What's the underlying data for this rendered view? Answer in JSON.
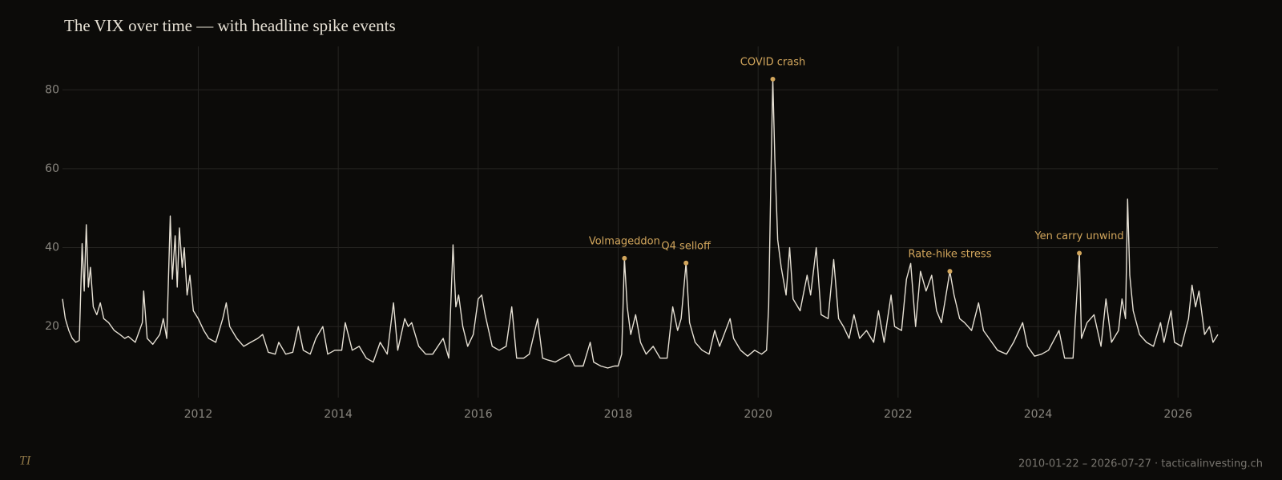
{
  "chart_data": {
    "type": "line",
    "title": "The VIX over time — with headline spike events",
    "logo": "TI",
    "footer": "2010-01-22 – 2026-07-27   ·   tacticalinvesting.ch",
    "color": "#e6e0d4",
    "annotation_color": "#d2a65c",
    "grid": true,
    "xlim": [
      2010.06,
      2026.57
    ],
    "xticks": [
      2012,
      2014,
      2016,
      2018,
      2020,
      2022,
      2024,
      2026
    ],
    "ylim": [
      2,
      91
    ],
    "yticks": [
      20,
      40,
      60,
      80
    ],
    "x": [
      2010.06,
      2010.1,
      2010.15,
      2010.2,
      2010.25,
      2010.3,
      2010.34,
      2010.37,
      2010.4,
      2010.43,
      2010.46,
      2010.5,
      2010.55,
      2010.6,
      2010.65,
      2010.72,
      2010.8,
      2010.88,
      2010.95,
      2011.0,
      2011.1,
      2011.2,
      2011.22,
      2011.27,
      2011.35,
      2011.45,
      2011.5,
      2011.55,
      2011.6,
      2011.63,
      2011.67,
      2011.7,
      2011.73,
      2011.77,
      2011.8,
      2011.84,
      2011.88,
      2011.93,
      2012.0,
      2012.08,
      2012.15,
      2012.25,
      2012.35,
      2012.4,
      2012.45,
      2012.55,
      2012.65,
      2012.75,
      2012.85,
      2012.92,
      2013.0,
      2013.1,
      2013.15,
      2013.25,
      2013.35,
      2013.43,
      2013.5,
      2013.6,
      2013.68,
      2013.78,
      2013.85,
      2013.95,
      2014.05,
      2014.1,
      2014.2,
      2014.3,
      2014.4,
      2014.5,
      2014.6,
      2014.7,
      2014.79,
      2014.85,
      2014.95,
      2015.0,
      2015.05,
      2015.15,
      2015.25,
      2015.35,
      2015.5,
      2015.58,
      2015.64,
      2015.68,
      2015.72,
      2015.78,
      2015.85,
      2015.93,
      2016.0,
      2016.05,
      2016.1,
      2016.2,
      2016.3,
      2016.4,
      2016.48,
      2016.55,
      2016.65,
      2016.73,
      2016.85,
      2016.92,
      2017.0,
      2017.1,
      2017.2,
      2017.3,
      2017.38,
      2017.5,
      2017.6,
      2017.65,
      2017.75,
      2017.85,
      2017.95,
      2018.0,
      2018.05,
      2018.09,
      2018.13,
      2018.18,
      2018.25,
      2018.32,
      2018.4,
      2018.5,
      2018.6,
      2018.7,
      2018.78,
      2018.85,
      2018.9,
      2018.97,
      2019.02,
      2019.1,
      2019.2,
      2019.3,
      2019.38,
      2019.45,
      2019.6,
      2019.65,
      2019.75,
      2019.85,
      2019.95,
      2020.05,
      2020.12,
      2020.15,
      2020.18,
      2020.21,
      2020.24,
      2020.28,
      2020.33,
      2020.4,
      2020.45,
      2020.5,
      2020.6,
      2020.7,
      2020.75,
      2020.83,
      2020.9,
      2021.0,
      2021.08,
      2021.15,
      2021.22,
      2021.3,
      2021.37,
      2021.45,
      2021.55,
      2021.65,
      2021.72,
      2021.8,
      2021.9,
      2021.95,
      2022.05,
      2022.12,
      2022.18,
      2022.25,
      2022.32,
      2022.4,
      2022.48,
      2022.55,
      2022.62,
      2022.74,
      2022.8,
      2022.88,
      2022.95,
      2023.05,
      2023.15,
      2023.22,
      2023.3,
      2023.42,
      2023.55,
      2023.65,
      2023.78,
      2023.85,
      2023.95,
      2024.05,
      2024.15,
      2024.3,
      2024.38,
      2024.5,
      2024.59,
      2024.62,
      2024.7,
      2024.8,
      2024.9,
      2024.97,
      2025.05,
      2025.15,
      2025.2,
      2025.25,
      2025.28,
      2025.31,
      2025.36,
      2025.45,
      2025.55,
      2025.65,
      2025.75,
      2025.8,
      2025.9,
      2025.95,
      2026.05,
      2026.15,
      2026.2,
      2026.25,
      2026.3,
      2026.38,
      2026.45,
      2026.5,
      2026.57
    ],
    "values": [
      27,
      22,
      19,
      17,
      16,
      16.5,
      41,
      29,
      45.8,
      30,
      35,
      25,
      23,
      26,
      22,
      21,
      19,
      18,
      17,
      17.5,
      16,
      21,
      29,
      17,
      15.5,
      18,
      22,
      17,
      48,
      32,
      43,
      30,
      45,
      35,
      40,
      28,
      33,
      24,
      22,
      19,
      17,
      16,
      22,
      26,
      20,
      17,
      15,
      16,
      17,
      18,
      13.5,
      13,
      16,
      13,
      13.5,
      20,
      14,
      13,
      17,
      20,
      13,
      14,
      14,
      21,
      14,
      15,
      12,
      11,
      16,
      13,
      26,
      14,
      22,
      20,
      21,
      15,
      13,
      13,
      17,
      12,
      40.7,
      25,
      28,
      20,
      15,
      18,
      27,
      28,
      23,
      15,
      14,
      15,
      25,
      12,
      12,
      13,
      22,
      12,
      11.5,
      11,
      12,
      13,
      10,
      10,
      16,
      11,
      10,
      9.5,
      10,
      10,
      13,
      37.3,
      25,
      18,
      23,
      16,
      13,
      15,
      12,
      12,
      25,
      19,
      22,
      36.1,
      21,
      16,
      14,
      13,
      19,
      15,
      22,
      17,
      14,
      12.5,
      14,
      13,
      14,
      25,
      55,
      82.7,
      62,
      42,
      35,
      28,
      40,
      27,
      24,
      33,
      28,
      40,
      23,
      22,
      37,
      22,
      20,
      17,
      23,
      17,
      19,
      16,
      24,
      16,
      28,
      20,
      19,
      32,
      36,
      20,
      34,
      29,
      33,
      24,
      21,
      34,
      28,
      22,
      21,
      19,
      26,
      19,
      17,
      14,
      13,
      16,
      21,
      15,
      12.5,
      13,
      14,
      19,
      12,
      12,
      38.6,
      17,
      21,
      23,
      15,
      27,
      16,
      19,
      27,
      22,
      52.3,
      33,
      24,
      18,
      16,
      15,
      21,
      16,
      24,
      16,
      15,
      22,
      30.5,
      25,
      29,
      18,
      20,
      16,
      18
    ],
    "annotations": [
      {
        "label": "Volmageddon",
        "x": 2018.09,
        "y": 37.3
      },
      {
        "label": "Q4 selloff",
        "x": 2018.97,
        "y": 36.1
      },
      {
        "label": "COVID crash",
        "x": 2020.21,
        "y": 82.7
      },
      {
        "label": "Rate-hike stress",
        "x": 2022.74,
        "y": 34
      },
      {
        "label": "Yen carry unwind",
        "x": 2024.59,
        "y": 38.6
      }
    ]
  }
}
